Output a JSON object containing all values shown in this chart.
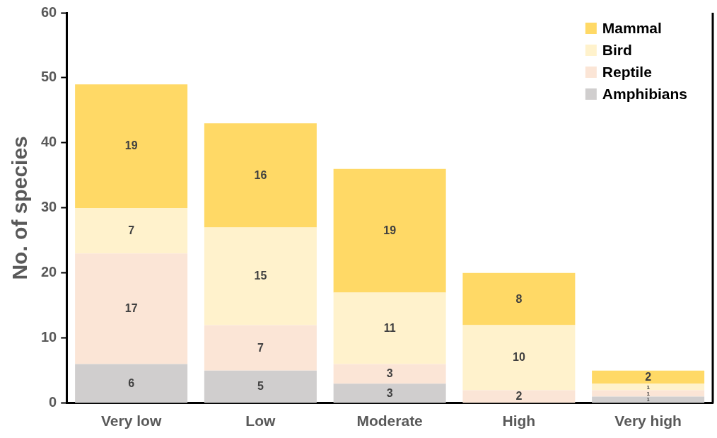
{
  "chart_data": {
    "type": "bar",
    "stacked": true,
    "ylabel": "No. of species",
    "categories": [
      "Very low",
      "Low",
      "Moderate",
      "High",
      "Very high"
    ],
    "series": [
      {
        "name": "Amphibians",
        "color": "#d0cece",
        "values": [
          6,
          5,
          3,
          0,
          1
        ],
        "value_labels": [
          "6",
          "5",
          "3",
          null,
          "1"
        ]
      },
      {
        "name": "Reptile",
        "color": "#fbe5d6",
        "values": [
          17,
          7,
          3,
          2,
          1
        ],
        "value_labels": [
          "17",
          "7",
          "3",
          "2",
          "1"
        ]
      },
      {
        "name": "Bird",
        "color": "#fff2cc",
        "values": [
          7,
          15,
          11,
          10,
          1
        ],
        "value_labels": [
          "7",
          "15",
          "11",
          "10",
          "1"
        ]
      },
      {
        "name": "Mammal",
        "color": "#ffd966",
        "values": [
          19,
          16,
          19,
          8,
          2
        ],
        "value_labels": [
          "19",
          "16",
          "19",
          "8",
          "2"
        ]
      }
    ],
    "ylim": [
      0,
      60
    ],
    "yticks": [
      0,
      10,
      20,
      30,
      40,
      50,
      60
    ],
    "grid": false,
    "legend": "top right"
  }
}
